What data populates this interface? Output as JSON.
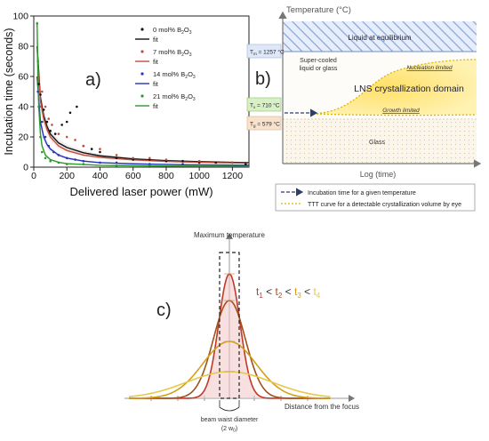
{
  "panel_a": {
    "label": "a)",
    "xlabel": "Delivered laser power (mW)",
    "ylabel": "Incubation time (seconds)",
    "xticks": [
      "0",
      "200",
      "400",
      "600",
      "800",
      "1000",
      "1200"
    ],
    "yticks": [
      "0",
      "20",
      "40",
      "60",
      "80",
      "100"
    ],
    "legend": [
      {
        "points": "0 mol% B",
        "sub": "2",
        "tail": "O",
        "sub2": "3",
        "fit": "fit"
      },
      {
        "points": "7 mol% B",
        "sub": "2",
        "tail": "O",
        "sub2": "3",
        "fit": "fit"
      },
      {
        "points": "14 mol% B",
        "sub": "2",
        "tail": "O",
        "sub2": "3",
        "fit": "fit"
      },
      {
        "points": "21 mol% B",
        "sub": "2",
        "tail": "O",
        "sub2": "3",
        "fit": "fit"
      }
    ],
    "colors": [
      "#111111",
      "#c0503a",
      "#2436b8",
      "#2a9a2a"
    ]
  },
  "panel_b": {
    "label": "b)",
    "y_axis_title": "Temperature (°C)",
    "x_axis_title": "Log (time)",
    "tm_label": "T",
    "tm_sub": "m",
    "tm_value": " = 1257 °C",
    "tx_label": "T",
    "tx_sub": "x",
    "tx_value": " = 710 °C",
    "tg_label": "T",
    "tg_sub": "g",
    "tg_value": " = 579 °C",
    "liquid": "Liquid at equilibrium",
    "supercooled_1": "Super-cooled",
    "supercooled_2": "liquid or glass",
    "domain": "LNS crystallization domain",
    "nucleation": "Nucleation limited",
    "growth": "Growth limited",
    "glass": "Glass",
    "legend_arrow": "Incubation time for a given temperature",
    "legend_ttt": "TTT curve for a detectable crystallization volume by eye"
  },
  "panel_c": {
    "label": "c)",
    "top_label": "Maximum temperature",
    "x_label": "Distance from the focus",
    "beam_1": "beam waist diameter",
    "beam_2_pre": "(2 w",
    "beam_2_sub": "0",
    "beam_2_post": ")",
    "t_order": [
      {
        "t": "t",
        "sub": "1",
        "color": "#c0392b"
      },
      {
        "t": "t",
        "sub": "2",
        "color": "#a0521d"
      },
      {
        "t": "t",
        "sub": "3",
        "color": "#d4a017"
      },
      {
        "t": "t",
        "sub": "4",
        "color": "#e6c84a"
      }
    ],
    "lt": " < "
  },
  "chart_data": {
    "type": "scatter",
    "xlabel": "Delivered laser power (mW)",
    "ylabel": "Incubation time (seconds)",
    "xlim": [
      0,
      1300
    ],
    "ylim": [
      0,
      100
    ],
    "series": [
      {
        "name": "0 mol% B2O3",
        "color": "#111111",
        "points": [
          [
            30,
            55
          ],
          [
            40,
            48
          ],
          [
            60,
            38
          ],
          [
            80,
            30
          ],
          [
            100,
            24
          ],
          [
            130,
            22
          ],
          [
            170,
            28
          ],
          [
            200,
            30
          ],
          [
            220,
            36
          ],
          [
            260,
            40
          ],
          [
            300,
            14
          ],
          [
            350,
            12
          ],
          [
            400,
            10
          ],
          [
            500,
            6
          ],
          [
            600,
            5
          ],
          [
            700,
            5
          ],
          [
            800,
            4
          ],
          [
            900,
            4
          ],
          [
            1000,
            3
          ],
          [
            1100,
            3
          ],
          [
            1200,
            3
          ],
          [
            1280,
            2
          ]
        ],
        "fit_points": [
          [
            20,
            80
          ],
          [
            40,
            46
          ],
          [
            60,
            34
          ],
          [
            80,
            27
          ],
          [
            100,
            22
          ],
          [
            150,
            16
          ],
          [
            200,
            13
          ],
          [
            300,
            9.5
          ],
          [
            400,
            7.5
          ],
          [
            600,
            5.5
          ],
          [
            800,
            4.3
          ],
          [
            1000,
            3.6
          ],
          [
            1300,
            3
          ]
        ]
      },
      {
        "name": "7 mol% B2O3",
        "color": "#c0503a",
        "points": [
          [
            30,
            60
          ],
          [
            50,
            50
          ],
          [
            70,
            40
          ],
          [
            90,
            32
          ],
          [
            110,
            28
          ],
          [
            150,
            22
          ],
          [
            200,
            20
          ],
          [
            250,
            18
          ],
          [
            300,
            14
          ],
          [
            400,
            12
          ],
          [
            500,
            8
          ],
          [
            600,
            6
          ],
          [
            700,
            6
          ],
          [
            800,
            5
          ],
          [
            1000,
            4
          ],
          [
            1200,
            3
          ]
        ],
        "fit_points": [
          [
            20,
            78
          ],
          [
            40,
            44
          ],
          [
            60,
            32
          ],
          [
            80,
            25
          ],
          [
            100,
            20
          ],
          [
            150,
            14
          ],
          [
            200,
            11
          ],
          [
            300,
            8
          ],
          [
            400,
            6.5
          ],
          [
            600,
            4.8
          ],
          [
            800,
            3.8
          ],
          [
            1000,
            3.2
          ],
          [
            1300,
            2.6
          ]
        ]
      },
      {
        "name": "14 mol% B2O3",
        "color": "#2436b8",
        "points": [
          [
            25,
            50
          ],
          [
            35,
            40
          ],
          [
            50,
            30
          ],
          [
            70,
            20
          ],
          [
            90,
            14
          ],
          [
            120,
            10
          ],
          [
            150,
            8
          ],
          [
            200,
            6
          ],
          [
            250,
            5
          ],
          [
            300,
            4
          ],
          [
            400,
            3
          ],
          [
            500,
            3
          ],
          [
            700,
            2
          ],
          [
            900,
            2
          ]
        ],
        "fit_points": [
          [
            20,
            60
          ],
          [
            40,
            30
          ],
          [
            60,
            20
          ],
          [
            80,
            15
          ],
          [
            100,
            12
          ],
          [
            150,
            8
          ],
          [
            200,
            6
          ],
          [
            300,
            4
          ],
          [
            400,
            3
          ],
          [
            600,
            2.2
          ],
          [
            900,
            1.6
          ],
          [
            1300,
            1.2
          ]
        ]
      },
      {
        "name": "21 mol% B2O3",
        "color": "#2a9a2a",
        "points": [
          [
            20,
            95
          ],
          [
            25,
            70
          ],
          [
            30,
            40
          ],
          [
            40,
            20
          ],
          [
            50,
            10
          ],
          [
            70,
            6
          ],
          [
            100,
            4
          ],
          [
            150,
            3
          ],
          [
            200,
            2
          ],
          [
            300,
            2
          ],
          [
            500,
            1
          ],
          [
            700,
            1
          ]
        ],
        "fit_points": [
          [
            20,
            96
          ],
          [
            25,
            60
          ],
          [
            30,
            40
          ],
          [
            40,
            22
          ],
          [
            50,
            14
          ],
          [
            70,
            8
          ],
          [
            100,
            5
          ],
          [
            150,
            3.2
          ],
          [
            200,
            2.3
          ],
          [
            400,
            1.2
          ],
          [
            800,
            0.7
          ],
          [
            1300,
            0.5
          ]
        ]
      }
    ]
  }
}
